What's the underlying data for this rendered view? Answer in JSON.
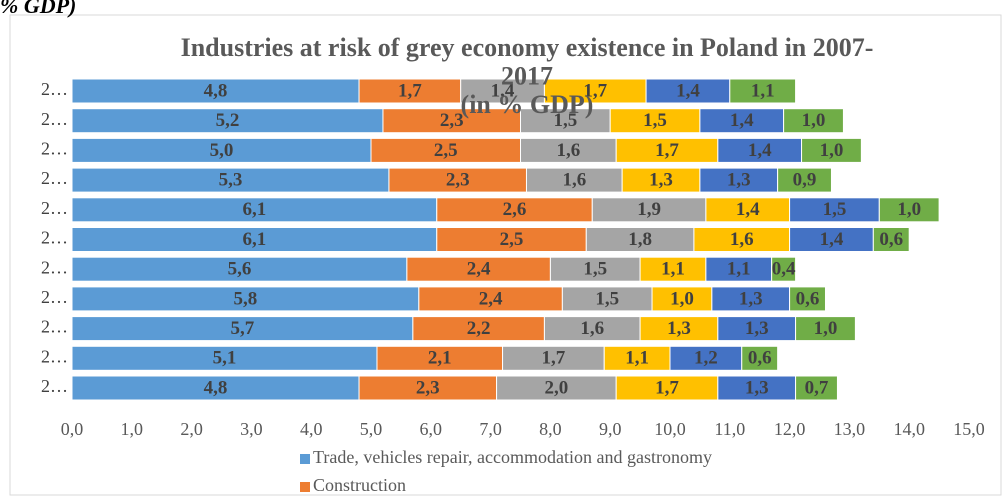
{
  "caption": "% GDP)",
  "chart_data": {
    "type": "stacked-barh",
    "title": [
      "Industries at risk of grey economy existence in Poland in 2007-",
      "2017",
      "(in % GDP)"
    ],
    "categories": [
      "2…",
      "2…",
      "2…",
      "2…",
      "2…",
      "2…",
      "2…",
      "2…",
      "2…",
      "2…",
      "2…"
    ],
    "series": [
      {
        "name": "Trade, vehicles repair, accommodation and gastronomy",
        "color": "#5b9bd5",
        "values": [
          4.8,
          5.2,
          5.0,
          5.3,
          6.1,
          6.1,
          5.6,
          5.8,
          5.7,
          5.1,
          4.8
        ],
        "value_labels": [
          "4,8",
          "5,2",
          "5,0",
          "5,3",
          "6,1",
          "6,1",
          "5,6",
          "5,8",
          "5,7",
          "5,1",
          "4,8"
        ]
      },
      {
        "name": "Construction",
        "color": "#ed7d31",
        "values": [
          1.7,
          2.3,
          2.5,
          2.3,
          2.6,
          2.5,
          2.4,
          2.4,
          2.2,
          2.1,
          2.3
        ],
        "value_labels": [
          "1,7",
          "2,3",
          "2,5",
          "2,3",
          "2,6",
          "2,5",
          "2,4",
          "2,4",
          "2,2",
          "2,1",
          "2,3"
        ]
      },
      {
        "name": null,
        "color": "#a5a5a5",
        "values": [
          1.4,
          1.5,
          1.6,
          1.6,
          1.9,
          1.8,
          1.5,
          1.5,
          1.6,
          1.7,
          2.0
        ],
        "value_labels": [
          "1,4",
          "1,5",
          "1,6",
          "1,6",
          "1,9",
          "1,8",
          "1,5",
          "1,5",
          "1,6",
          "1,7",
          "2,0"
        ]
      },
      {
        "name": null,
        "color": "#ffc000",
        "values": [
          1.7,
          1.5,
          1.7,
          1.3,
          1.4,
          1.6,
          1.1,
          1.0,
          1.3,
          1.1,
          1.7
        ],
        "value_labels": [
          "1,7",
          "1,5",
          "1,7",
          "1,3",
          "1,4",
          "1,6",
          "1,1",
          "1,0",
          "1,3",
          "1,1",
          "1,7"
        ]
      },
      {
        "name": null,
        "color": "#4472c4",
        "values": [
          1.4,
          1.4,
          1.4,
          1.3,
          1.5,
          1.4,
          1.1,
          1.3,
          1.3,
          1.2,
          1.3
        ],
        "value_labels": [
          "1,4",
          "1,4",
          "1,4",
          "1,3",
          "1,5",
          "1,4",
          "1,1",
          "1,3",
          "1,3",
          "1,2",
          "1,3"
        ]
      },
      {
        "name": null,
        "color": "#70ad47",
        "values": [
          1.1,
          1.0,
          1.0,
          0.9,
          1.0,
          0.6,
          0.4,
          0.6,
          1.0,
          0.6,
          0.7
        ],
        "value_labels": [
          "1,1",
          "1,0",
          "1,0",
          "0,9",
          "1,0",
          "0,6",
          "0,4",
          "0,6",
          "1,0",
          "0,6",
          "0,7"
        ]
      }
    ],
    "xlim": [
      0,
      15
    ],
    "xticks": [
      {
        "value": 0,
        "label": "0,0"
      },
      {
        "value": 1,
        "label": "1,0"
      },
      {
        "value": 2,
        "label": "2,0"
      },
      {
        "value": 3,
        "label": "3,0"
      },
      {
        "value": 4,
        "label": "4,0"
      },
      {
        "value": 5,
        "label": "5,0"
      },
      {
        "value": 6,
        "label": "6,0"
      },
      {
        "value": 7,
        "label": "7,0"
      },
      {
        "value": 8,
        "label": "8,0"
      },
      {
        "value": 9,
        "label": "9,0"
      },
      {
        "value": 10,
        "label": "10,0"
      },
      {
        "value": 11,
        "label": "11,0"
      },
      {
        "value": 12,
        "label": "12,0"
      },
      {
        "value": 13,
        "label": "13,0"
      },
      {
        "value": 14,
        "label": "14,0"
      },
      {
        "value": 15,
        "label": "15,0"
      }
    ],
    "grid": false,
    "legend": "bottom"
  }
}
